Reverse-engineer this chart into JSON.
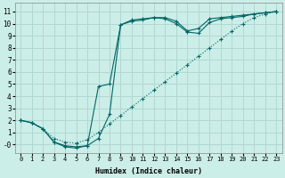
{
  "xlabel": "Humidex (Indice chaleur)",
  "bg_color": "#cceee8",
  "grid_color": "#b0d8d0",
  "line_color": "#006666",
  "xlim": [
    -0.5,
    23.5
  ],
  "ylim": [
    -0.7,
    11.7
  ],
  "xticks": [
    0,
    1,
    2,
    3,
    4,
    5,
    6,
    7,
    8,
    9,
    10,
    11,
    12,
    13,
    14,
    15,
    16,
    17,
    18,
    19,
    20,
    21,
    22,
    23
  ],
  "yticks": [
    0,
    1,
    2,
    3,
    4,
    5,
    6,
    7,
    8,
    9,
    10,
    11
  ],
  "ytick_labels": [
    "-0",
    "1",
    "2",
    "3",
    "4",
    "5",
    "6",
    "7",
    "8",
    "9",
    "10",
    "11"
  ],
  "line1_x": [
    0,
    1,
    2,
    3,
    4,
    5,
    6,
    7,
    8,
    9,
    10,
    11,
    12,
    13,
    14,
    15,
    16,
    17,
    18,
    19,
    20,
    21,
    22,
    23
  ],
  "line1_y": [
    2.0,
    1.8,
    1.3,
    0.5,
    0.2,
    0.1,
    0.4,
    1.0,
    1.7,
    2.4,
    3.1,
    3.8,
    4.5,
    5.2,
    5.9,
    6.6,
    7.3,
    8.0,
    8.7,
    9.4,
    10.0,
    10.5,
    10.8,
    11.0
  ],
  "line2_x": [
    0,
    1,
    2,
    3,
    4,
    5,
    6,
    7,
    8,
    9,
    10,
    11,
    12,
    13,
    14,
    15,
    16,
    17,
    18,
    19,
    20,
    21,
    22,
    23
  ],
  "line2_y": [
    2.0,
    1.8,
    1.3,
    0.2,
    -0.1,
    -0.2,
    -0.1,
    0.5,
    2.5,
    9.9,
    10.2,
    10.3,
    10.5,
    10.5,
    10.2,
    9.4,
    9.6,
    10.4,
    10.5,
    10.6,
    10.7,
    10.8,
    10.9,
    11.0
  ],
  "line3_x": [
    0,
    1,
    2,
    3,
    4,
    5,
    6,
    7,
    8,
    9,
    10,
    11,
    12,
    13,
    14,
    15,
    16,
    17,
    18,
    19,
    20,
    21,
    22,
    23
  ],
  "line3_y": [
    2.0,
    1.8,
    1.3,
    0.2,
    -0.2,
    -0.3,
    -0.1,
    4.8,
    5.0,
    9.9,
    10.3,
    10.4,
    10.5,
    10.4,
    10.0,
    9.3,
    9.2,
    10.1,
    10.4,
    10.5,
    10.6,
    10.8,
    10.9,
    11.0
  ]
}
